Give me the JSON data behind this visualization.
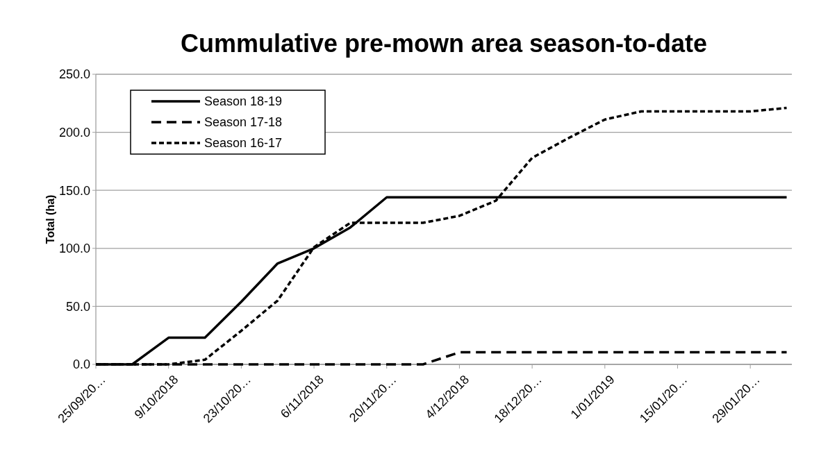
{
  "chart_data": {
    "type": "line",
    "title": "Cummulative pre-mown area season-to-date",
    "ylabel": "Total (ha)",
    "x": [
      "2018-09-25",
      "2018-10-02",
      "2018-10-09",
      "2018-10-16",
      "2018-10-23",
      "2018-10-30",
      "2018-11-06",
      "2018-11-13",
      "2018-11-20",
      "2018-11-27",
      "2018-12-04",
      "2018-12-11",
      "2018-12-18",
      "2018-12-25",
      "2019-01-01",
      "2019-01-08",
      "2019-01-15",
      "2019-01-22",
      "2019-01-29",
      "2019-02-05"
    ],
    "series": [
      {
        "name": "Season 18-19",
        "color": "#000000",
        "line_style": "solid",
        "values": [
          0,
          0,
          23,
          23,
          54,
          87,
          100,
          118,
          144,
          144,
          144,
          144,
          144,
          144,
          144,
          144,
          144,
          144,
          144,
          144
        ]
      },
      {
        "name": "Season 17-18",
        "color": "#000000",
        "line_style": "dashed",
        "values": [
          0,
          0,
          0,
          0,
          0,
          0,
          0,
          0,
          0,
          0,
          10.4,
          10.4,
          10.4,
          10.4,
          10.4,
          10.4,
          10.4,
          10.4,
          10.4,
          10.4
        ]
      },
      {
        "name": "Season 16-17",
        "color": "#000000",
        "line_style": "dotted",
        "values": [
          0,
          0,
          0,
          4,
          29,
          55,
          101,
          122,
          122,
          122,
          128,
          141,
          178,
          195,
          211,
          218,
          218,
          218,
          218,
          221
        ]
      }
    ],
    "xlim": [
      "2018-09-25",
      "2019-02-06"
    ],
    "xticks": [
      {
        "value": "2018-09-25",
        "label": "25/09/20…"
      },
      {
        "value": "2018-10-09",
        "label": "9/10/2018"
      },
      {
        "value": "2018-10-23",
        "label": "23/10/20…"
      },
      {
        "value": "2018-11-06",
        "label": "6/11/2018"
      },
      {
        "value": "2018-11-20",
        "label": "20/11/20…"
      },
      {
        "value": "2018-12-04",
        "label": "4/12/2018"
      },
      {
        "value": "2018-12-18",
        "label": "18/12/20…"
      },
      {
        "value": "2019-01-01",
        "label": "1/01/2019"
      },
      {
        "value": "2019-01-15",
        "label": "15/01/20…"
      },
      {
        "value": "2019-01-29",
        "label": "29/01/20…"
      }
    ],
    "ylim": [
      0,
      250
    ],
    "yticks": [
      {
        "value": 0,
        "label": "0.0"
      },
      {
        "value": 50,
        "label": "50.0"
      },
      {
        "value": 100,
        "label": "100.0"
      },
      {
        "value": 150,
        "label": "150.0"
      },
      {
        "value": 200,
        "label": "200.0"
      },
      {
        "value": 250,
        "label": "250.0"
      }
    ],
    "grid": "y",
    "legend": "top left",
    "marker": "none"
  }
}
